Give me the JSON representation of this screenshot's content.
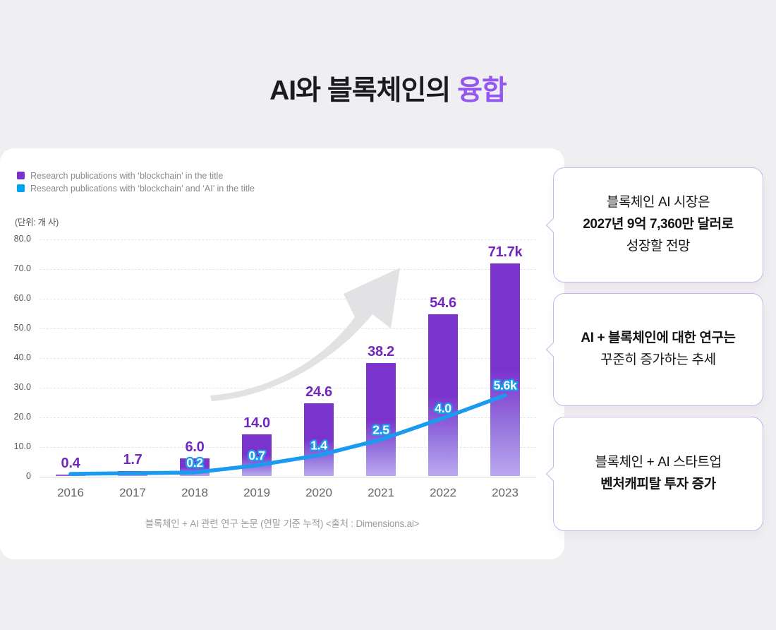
{
  "title": {
    "prefix": "AI와 블록체인의",
    "accent": "융합"
  },
  "colors": {
    "background": "#EFEEF0",
    "title_accent": "#9356F0",
    "bar_purple_top": "#7B33CD",
    "bar_purple_bottom": "#BCA9F0",
    "bar_label_purple": "#7127BD",
    "line_blue": "#1B9BF0",
    "legend_purple": "#7B2FD0",
    "legend_blue": "#00A3F4",
    "callout_border": "#C9B5EB",
    "arrow_gray": "#E2E1E4"
  },
  "chart_card": {
    "legend": [
      {
        "label": "Research publications with ‘blockchain’ in the title",
        "color": "#7B2FD0"
      },
      {
        "label": "Research publications with ‘blockchain’ and ‘AI’ in the title",
        "color": "#00A3F4"
      }
    ],
    "unit_label": "(단위: 개 사)",
    "caption": "블록체인 + AI 관련 연구 논문 (연말 기준 누적) <출처 : Dimensions.ai>"
  },
  "chart_data": {
    "type": "bar+line combo",
    "title": "블록체인 + AI 관련 연구 논문 (연말 기준 누적)",
    "source": "Dimensions.ai",
    "categories": [
      "2016",
      "2017",
      "2018",
      "2019",
      "2020",
      "2021",
      "2022",
      "2023"
    ],
    "series": [
      {
        "name": "Research publications with ‘blockchain’ in the title",
        "type": "bar",
        "color": "#7B33CD",
        "values": [
          0.4,
          1.7,
          6.0,
          14.0,
          24.6,
          38.2,
          54.6,
          71.7
        ],
        "labels": [
          "0.4",
          "1.7",
          "6.0",
          "14.0",
          "24.6",
          "38.2",
          "54.6",
          "71.7k"
        ],
        "unit": "k publications",
        "axis_max": 80
      },
      {
        "name": "Research publications with ‘blockchain’ and ‘AI’ in the title",
        "type": "line",
        "color": "#1B9BF0",
        "values": [
          0.1,
          0.15,
          0.2,
          0.7,
          1.4,
          2.5,
          4.0,
          5.6
        ],
        "labels": [
          "",
          "",
          "0.2",
          "0.7",
          "1.4",
          "2.5",
          "4.0",
          "5.6k"
        ],
        "unit": "k publications",
        "axis_max": 16.6,
        "note": "plotted on secondary scale"
      }
    ],
    "ylabel_unit": "(단위: 개 사)",
    "ylim": [
      0,
      80
    ],
    "yticks": [
      "80.0",
      "70.0",
      "60.0",
      "50.0",
      "40.0",
      "30.0",
      "20.0",
      "10.0",
      "0"
    ],
    "grid": "dashed horizontal gridlines every 10",
    "legend_position": "top-left",
    "annotation": "upward gray trend arrow in background"
  },
  "callouts": [
    {
      "lines": [
        {
          "text": "블록체인 AI 시장은",
          "bold": false
        },
        {
          "text": "2027년 9억 7,360만 달러로",
          "bold": true
        },
        {
          "text": "성장할 전망",
          "bold": false
        }
      ]
    },
    {
      "lines": [
        {
          "text": "AI + 블록체인에 대한 연구는",
          "bold": true
        },
        {
          "text": "꾸준히 증가하는 추세",
          "bold": false
        }
      ]
    },
    {
      "lines": [
        {
          "text": "블록체인 + AI 스타트업",
          "bold": false
        },
        {
          "text": "벤처캐피탈 투자 증가",
          "bold": true
        }
      ]
    }
  ]
}
